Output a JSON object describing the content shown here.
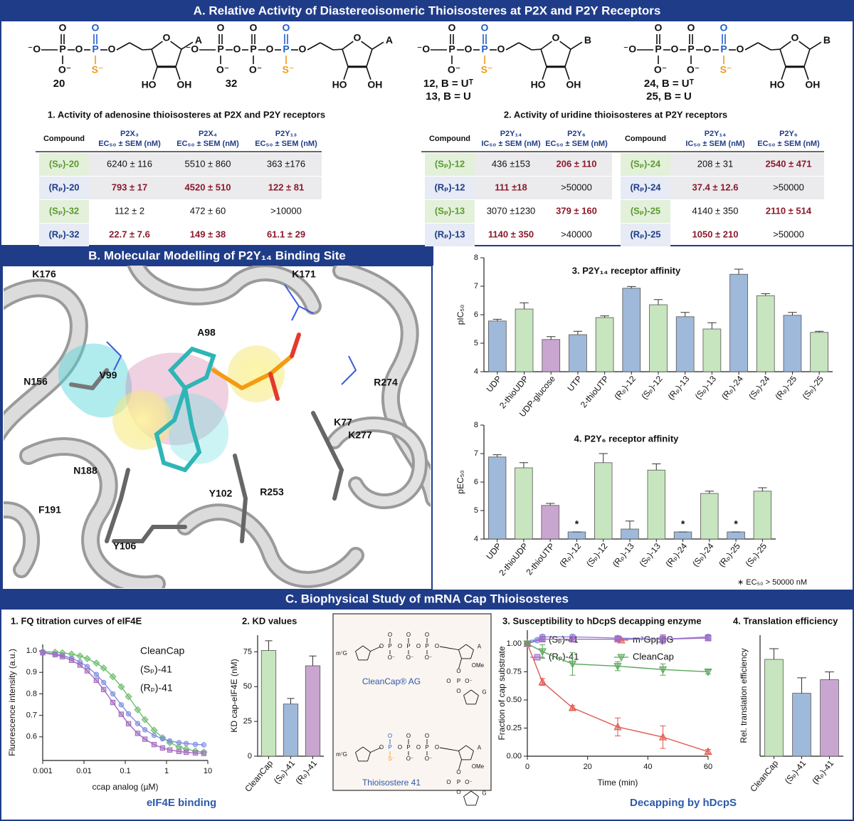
{
  "panel_a": {
    "title": "A. Relative Activity of Diastereoisomeric Thioisosteres at P2X and P2Y Receptors",
    "atoms": {
      "oxygen": "O",
      "phosphorus": "P",
      "thiolate": "S⁻",
      "oxide_left": "⁻O",
      "oxide_right": "O⁻",
      "hydroxyl_left": "HO",
      "hydroxyl_right": "OH"
    },
    "structures": [
      {
        "label": [
          "20"
        ],
        "base": "A"
      },
      {
        "label": [
          "32"
        ],
        "base": "A"
      },
      {
        "label": [
          "12, B = Uᵀ",
          "13, B = U"
        ],
        "base": "B"
      },
      {
        "label": [
          "24, B = Uᵀ",
          "25, B = U"
        ],
        "base": "B"
      }
    ],
    "table_1": {
      "title": "1. Activity of adenosine thioisosteres at P2X and P2Y receptors",
      "columns": [
        "Compound",
        {
          "receptor": "P2X₃",
          "measure": "EC₅₀ ± SEM (nM)"
        },
        {
          "receptor": "P2X₄",
          "measure": "EC₅₀ ± SEM (nM)"
        },
        {
          "receptor": "P2Y₁₃",
          "measure": "EC₅₀ ± SEM (nM)"
        }
      ],
      "rows": [
        {
          "compound": "(Sₚ)-20",
          "cells": [
            "6240 ± 116",
            "5510 ± 860",
            "363 ±176"
          ],
          "bold": [
            false,
            false,
            false
          ]
        },
        {
          "compound": "(Rₚ)-20",
          "cells": [
            "793 ± 17",
            "4520 ± 510",
            "122 ± 81"
          ],
          "bold": [
            true,
            true,
            true
          ]
        },
        {
          "compound": "(Sₚ)-32",
          "cells": [
            "112 ± 2",
            "472 ± 60",
            ">10000"
          ],
          "bold": [
            false,
            false,
            false
          ]
        },
        {
          "compound": "(Rₚ)-32",
          "cells": [
            "22.7 ± 7.6",
            "149 ± 38",
            "61.1 ± 29"
          ],
          "bold": [
            true,
            true,
            true
          ]
        }
      ]
    },
    "table_2": {
      "title": "2. Activity of uridine thioisosteres at P2Y receptors",
      "columns": [
        "Compound",
        {
          "receptor": "P2Y₁₄",
          "measure": "IC₅₀ ± SEM (nM)"
        },
        {
          "receptor": "P2Y₆",
          "measure": "EC₅₀ ± SEM (nM)"
        },
        "Compound",
        {
          "receptor": "P2Y₁₄",
          "measure": "IC₅₀ ± SEM (nM)"
        },
        {
          "receptor": "P2Y₆",
          "measure": "EC₅₀ ± SEM (nM)"
        }
      ],
      "rows": [
        {
          "left": {
            "compound": "(Sₚ)-12",
            "cells": [
              "436 ±153",
              "206 ± 110"
            ],
            "bold": [
              false,
              true
            ]
          },
          "right": {
            "compound": "(Sₚ)-24",
            "cells": [
              "208 ± 31",
              "2540 ± 471"
            ],
            "bold": [
              false,
              true
            ]
          }
        },
        {
          "left": {
            "compound": "(Rₚ)-12",
            "cells": [
              "111 ±18",
              ">50000"
            ],
            "bold": [
              true,
              false
            ]
          },
          "right": {
            "compound": "(Rₚ)-24",
            "cells": [
              "37.4 ± 12.6",
              ">50000"
            ],
            "bold": [
              true,
              false
            ]
          }
        },
        {
          "left": {
            "compound": "(Sₚ)-13",
            "cells": [
              "3070 ±1230",
              "379 ± 160"
            ],
            "bold": [
              false,
              true
            ]
          },
          "right": {
            "compound": "(Sₚ)-25",
            "cells": [
              "4140 ± 350",
              "2110 ± 514"
            ],
            "bold": [
              false,
              true
            ]
          }
        },
        {
          "left": {
            "compound": "(Rₚ)-13",
            "cells": [
              "1140 ± 350",
              ">40000"
            ],
            "bold": [
              true,
              false
            ]
          },
          "right": {
            "compound": "(Rₚ)-25",
            "cells": [
              "1050 ± 210",
              ">50000"
            ],
            "bold": [
              true,
              false
            ]
          }
        }
      ]
    }
  },
  "panel_b": {
    "title": "B. Molecular Modelling of P2Y₁₄ Binding Site",
    "residues": [
      "K176",
      "K171",
      "N156",
      "V99",
      "A98",
      "R274",
      "K77",
      "K277",
      "N188",
      "Y102",
      "R253",
      "F191",
      "Y106"
    ]
  },
  "panel_c": {
    "title": "C. Biophysical Study of mRNA Cap Thioisosteres",
    "cap_box": {
      "labels": [
        "CleanCap® AG",
        "Thioisostere 41"
      ],
      "atoms": {
        "m7g": "m⁷G",
        "oxygen": "O",
        "phosphorus": "P",
        "oxide": "O⁻",
        "thiolate": "S⁻",
        "adenine": "A",
        "guanine": "G",
        "methoxy": "OMe"
      }
    }
  },
  "chart_data": [
    {
      "type": "bar",
      "title": "3. P2Y₁₄ receptor affinity",
      "ylabel": "pIC₅₀",
      "categories": [
        "UDP",
        "2-thioUDP",
        "UDP-glucose",
        "UTP",
        "2-thioUTP",
        "(Rₚ)-12",
        "(Sₚ)-12",
        "(Rₚ)-13",
        "(Sₚ)-13",
        "(Rₚ)-24",
        "(Sₚ)-24",
        "(Rₚ)-25",
        "(Sₚ)-25"
      ],
      "values": [
        5.78,
        6.2,
        5.13,
        5.3,
        5.9,
        6.93,
        6.35,
        5.93,
        5.5,
        7.42,
        6.67,
        5.98,
        5.38
      ],
      "errors": [
        0.06,
        0.22,
        0.1,
        0.12,
        0.06,
        0.06,
        0.18,
        0.15,
        0.22,
        0.18,
        0.07,
        0.1,
        0.04
      ],
      "colors": [
        "#9fb9da",
        "#c7e5be",
        "#c9a6d0",
        "#9fb9da",
        "#c7e5be",
        "#9fb9da",
        "#c7e5be",
        "#9fb9da",
        "#c7e5be",
        "#9fb9da",
        "#c7e5be",
        "#9fb9da",
        "#c7e5be"
      ],
      "ylim": [
        4,
        8
      ],
      "yticks": [
        4,
        5,
        6,
        7,
        8
      ]
    },
    {
      "type": "bar",
      "title": "4. P2Y₆ receptor affinity",
      "ylabel": "pEC₅₀",
      "categories": [
        "UDP",
        "2-thioUDP",
        "2-thioUTP",
        "(Rₚ)-12",
        "(Sₚ)-12",
        "(Rₚ)-13",
        "(Sₚ)-13",
        "(Rₚ)-24",
        "(Sₚ)-24",
        "(Rₚ)-25",
        "(Sₚ)-25"
      ],
      "values": [
        6.88,
        6.5,
        5.18,
        4.25,
        6.68,
        4.35,
        6.42,
        4.25,
        5.6,
        4.25,
        5.68
      ],
      "errors": [
        0.08,
        0.18,
        0.07,
        0,
        0.32,
        0.28,
        0.22,
        0,
        0.08,
        0,
        0.12
      ],
      "bar_labels": [
        null,
        null,
        null,
        "*",
        null,
        null,
        null,
        "*",
        null,
        "*",
        null
      ],
      "colors": [
        "#9fb9da",
        "#c7e5be",
        "#c9a6d0",
        "#9fb9da",
        "#c7e5be",
        "#9fb9da",
        "#c7e5be",
        "#9fb9da",
        "#c7e5be",
        "#9fb9da",
        "#c7e5be"
      ],
      "ylim": [
        4,
        8
      ],
      "yticks": [
        4,
        5,
        6,
        7,
        8
      ],
      "footnote": "∗ EC₅₀ > 50000 nM"
    },
    {
      "type": "line",
      "title": "1. FQ titration curves of eIF4E",
      "xlabel": "ccap analog (µM)",
      "ylabel": "Fluorescence intensity (a.u.)",
      "caption": "eIF4E binding",
      "x": [
        0.001,
        0.002,
        0.003,
        0.005,
        0.008,
        0.012,
        0.02,
        0.03,
        0.05,
        0.08,
        0.12,
        0.2,
        0.3,
        0.5,
        0.8,
        1.2,
        2,
        3,
        5,
        8
      ],
      "xscale": "log",
      "xlim": [
        0.001,
        10
      ],
      "xticks": [
        0.001,
        0.01,
        0.1,
        1,
        10
      ],
      "ylim": [
        0.49,
        1.03
      ],
      "yticks": [
        0.6,
        0.7,
        0.8,
        0.9,
        {
          "value": 1,
          "label": "1.0"
        }
      ],
      "legend": "upper right",
      "series": [
        {
          "name": "CleanCap",
          "color": "#6dbd6b",
          "marker": "diamond",
          "values": [
            0.997,
            0.994,
            0.991,
            0.985,
            0.976,
            0.964,
            0.943,
            0.92,
            0.88,
            0.833,
            0.787,
            0.726,
            0.68,
            0.631,
            0.596,
            0.573,
            0.553,
            0.543,
            0.534,
            0.529
          ]
        },
        {
          "name": "(Sₚ)-41",
          "color": "#7f8fe0",
          "marker": "circle",
          "values": [
            0.993,
            0.986,
            0.979,
            0.966,
            0.948,
            0.927,
            0.89,
            0.853,
            0.8,
            0.749,
            0.707,
            0.662,
            0.633,
            0.607,
            0.591,
            0.581,
            0.573,
            0.569,
            0.565,
            0.563
          ]
        },
        {
          "name": "(Rₚ)-41",
          "color": "#a46ac0",
          "marker": "square",
          "values": [
            0.991,
            0.982,
            0.973,
            0.956,
            0.934,
            0.907,
            0.863,
            0.82,
            0.76,
            0.705,
            0.661,
            0.616,
            0.589,
            0.564,
            0.548,
            0.539,
            0.532,
            0.528,
            0.525,
            0.523
          ]
        }
      ]
    },
    {
      "type": "bar",
      "title": "2. KD values",
      "ylabel": "KD cap-eIF4E (nM)",
      "categories": [
        "CleanCap",
        "(Sₚ)-41",
        "(Rₚ)-41"
      ],
      "values": [
        76,
        37.5,
        65
      ],
      "errors": [
        7,
        4,
        7
      ],
      "colors": [
        "#c7e5be",
        "#9fb9da",
        "#c9a6d0"
      ],
      "ylim": [
        0,
        87
      ],
      "yticks": [
        0,
        25,
        50,
        75
      ]
    },
    {
      "type": "line",
      "title": "3. Susceptibility to hDcpS decapping enzyme",
      "xlabel": "Time (min)",
      "ylabel": "Fraction of cap substrate",
      "caption": "Decapping by hDcpS",
      "x": [
        0,
        5,
        15,
        30,
        45,
        60
      ],
      "xlim": [
        0,
        60
      ],
      "xticks": [
        0,
        20,
        40,
        60
      ],
      "ylim": [
        0,
        1.12
      ],
      "yticks": [
        {
          "value": 0,
          "label": "0.00"
        },
        {
          "value": 0.25,
          "label": "0.25"
        },
        {
          "value": 0.5,
          "label": "0.50"
        },
        {
          "value": 0.75,
          "label": "0.75"
        },
        {
          "value": 1,
          "label": "1.00"
        }
      ],
      "legend": "top",
      "series": [
        {
          "name": "(Sₚ)-41",
          "color": "#7e8be0",
          "marker": "circle",
          "values": [
            1,
            1.06,
            1.06,
            1.05,
            1.04,
            1.06
          ],
          "errors": [
            0,
            0.02,
            0.02,
            0.02,
            0.03,
            0.02
          ]
        },
        {
          "name": "m⁷GpppG",
          "color": "#e05a4f",
          "marker": "triangle-up",
          "values": [
            1,
            0.66,
            0.43,
            0.26,
            0.17,
            0.04
          ],
          "errors": [
            0,
            0.03,
            0.02,
            0.08,
            0.1,
            0.02
          ]
        },
        {
          "name": "(Rₚ)-41",
          "color": "#a46ac0",
          "marker": "square",
          "values": [
            1,
            1.04,
            1.04,
            1.04,
            1.04,
            1.05
          ],
          "errors": [
            0,
            0.02,
            0.02,
            0.02,
            0.04,
            0.02
          ]
        },
        {
          "name": "CleanCap",
          "color": "#5aa55a",
          "marker": "triangle-down",
          "values": [
            1,
            0.93,
            0.82,
            0.8,
            0.77,
            0.75
          ],
          "errors": [
            0,
            0.06,
            0.1,
            0.04,
            0.05,
            0.02
          ]
        }
      ]
    },
    {
      "type": "bar",
      "title": "4. Translation efficiency",
      "ylabel": "Rel. translation efficiency",
      "categories": [
        "CleanCap",
        "(Sₚ)-41",
        "(Rₚ)-41"
      ],
      "values": [
        1,
        0.65,
        0.79
      ],
      "errors": [
        0.11,
        0.16,
        0.08
      ],
      "colors": [
        "#c7e5be",
        "#9fb9da",
        "#c9a6d0"
      ],
      "ylim": [
        0,
        1.25
      ]
    }
  ]
}
